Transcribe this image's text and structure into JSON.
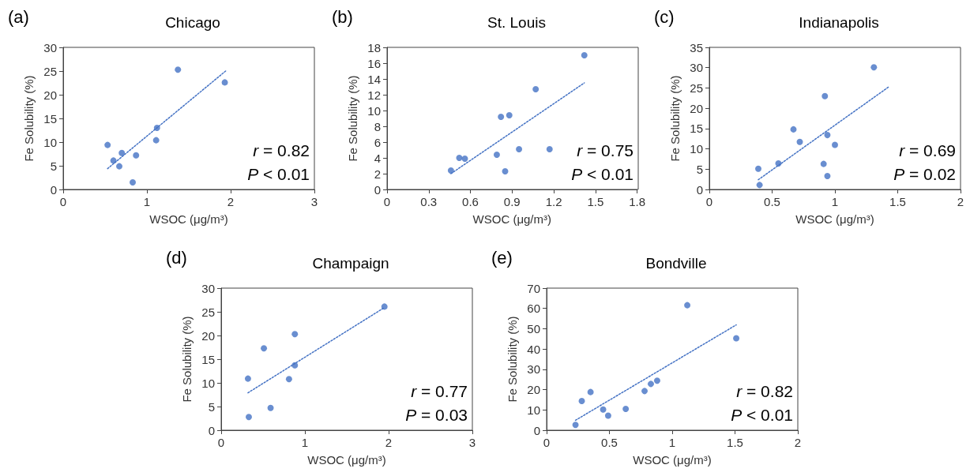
{
  "chart_data": [
    {
      "type": "scatter",
      "title": "Chicago",
      "xlabel": "WSOC (μg/m³)",
      "ylabel": "Fe Solubility (%)",
      "annotations": [
        "(a)",
        "r = 0.82",
        "P < 0.01"
      ],
      "xlim": [
        0,
        3
      ],
      "xticks": [
        0,
        1,
        2,
        3
      ],
      "ylim": [
        0,
        30
      ],
      "yticks": [
        0,
        5,
        10,
        15,
        20,
        25,
        30
      ],
      "grid": false,
      "marker": "circle",
      "series": [
        {
          "type": "scatter",
          "color": "#4472c4",
          "x": [
            0.53,
            0.6,
            0.67,
            0.7,
            0.83,
            0.87,
            1.11,
            1.12,
            1.37,
            1.93
          ],
          "values": [
            9.4,
            6.1,
            4.9,
            7.7,
            1.5,
            7.2,
            10.4,
            13.0,
            25.3,
            22.6
          ]
        },
        {
          "type": "line",
          "color": "#4472c4",
          "marker": "none",
          "line_style": "dotted",
          "x": [
            0.53,
            1.94
          ],
          "values": [
            4.4,
            25.0
          ]
        }
      ]
    },
    {
      "type": "scatter",
      "title": "St. Louis",
      "xlabel": "WSOC (μg/m³)",
      "ylabel": "Fe Solubility (%)",
      "annotations": [
        "(b)",
        "r = 0.75",
        "P < 0.01"
      ],
      "xlim": [
        0,
        1.8
      ],
      "xticks": [
        0,
        0.3,
        0.6,
        0.9,
        1.2,
        1.5,
        1.8
      ],
      "ylim": [
        0,
        18
      ],
      "yticks": [
        0,
        2,
        4,
        6,
        8,
        10,
        12,
        14,
        16,
        18
      ],
      "grid": false,
      "marker": "circle",
      "series": [
        {
          "type": "scatter",
          "color": "#4472c4",
          "x": [
            0.46,
            0.52,
            0.56,
            0.79,
            0.82,
            0.85,
            0.88,
            0.95,
            1.07,
            1.17,
            1.42
          ],
          "values": [
            2.4,
            4.0,
            3.9,
            4.4,
            9.2,
            2.3,
            9.4,
            5.1,
            12.7,
            5.1,
            17.0
          ]
        },
        {
          "type": "line",
          "color": "#4472c4",
          "marker": "none",
          "line_style": "dotted",
          "x": [
            0.46,
            1.42
          ],
          "values": [
            2.0,
            13.5
          ]
        }
      ]
    },
    {
      "type": "scatter",
      "title": "Indianapolis",
      "xlabel": "WSOC (μg/m³)",
      "ylabel": "Fe Solubility (%)",
      "annotations": [
        "(c)",
        "r = 0.69",
        "P = 0.02"
      ],
      "xlim": [
        0,
        2
      ],
      "xticks": [
        0,
        0.5,
        1,
        1.5,
        2
      ],
      "ylim": [
        0,
        35
      ],
      "yticks": [
        0,
        5,
        10,
        15,
        20,
        25,
        30,
        35
      ],
      "grid": false,
      "marker": "circle",
      "series": [
        {
          "type": "scatter",
          "color": "#4472c4",
          "x": [
            0.39,
            0.4,
            0.55,
            0.67,
            0.72,
            0.91,
            0.92,
            0.94,
            0.94,
            1.0,
            1.31
          ],
          "values": [
            5.1,
            1.1,
            6.4,
            14.8,
            11.7,
            6.3,
            23.0,
            13.4,
            3.3,
            11.0,
            30.1
          ]
        },
        {
          "type": "line",
          "color": "#4472c4",
          "marker": "none",
          "line_style": "dotted",
          "x": [
            0.39,
            1.43
          ],
          "values": [
            2.4,
            25.3
          ]
        }
      ]
    },
    {
      "type": "scatter",
      "title": "Champaign",
      "xlabel": "WSOC (μg/m³)",
      "ylabel": "Fe Solubility (%)",
      "annotations": [
        "(d)",
        "r = 0.77",
        "P = 0.03"
      ],
      "xlim": [
        0,
        3
      ],
      "xticks": [
        0,
        1,
        2,
        3
      ],
      "ylim": [
        0,
        30
      ],
      "yticks": [
        0,
        5,
        10,
        15,
        20,
        25,
        30
      ],
      "grid": false,
      "marker": "circle",
      "series": [
        {
          "type": "scatter",
          "color": "#4472c4",
          "x": [
            0.32,
            0.33,
            0.51,
            0.59,
            0.81,
            0.88,
            0.88,
            1.95
          ],
          "values": [
            10.9,
            2.8,
            17.3,
            4.7,
            10.8,
            20.3,
            13.7,
            26.1
          ]
        },
        {
          "type": "line",
          "color": "#4472c4",
          "marker": "none",
          "line_style": "dotted",
          "x": [
            0.32,
            1.95
          ],
          "values": [
            7.9,
            25.9
          ]
        }
      ]
    },
    {
      "type": "scatter",
      "title": "Bondville",
      "xlabel": "WSOC (μg/m³)",
      "ylabel": "Fe Solubility (%)",
      "annotations": [
        "(e)",
        "r = 0.82",
        "P < 0.01"
      ],
      "xlim": [
        0,
        2
      ],
      "xticks": [
        0,
        0.5,
        1,
        1.5,
        2
      ],
      "ylim": [
        0,
        70
      ],
      "yticks": [
        0,
        10,
        20,
        30,
        40,
        50,
        60,
        70
      ],
      "grid": false,
      "marker": "circle",
      "series": [
        {
          "type": "scatter",
          "color": "#4472c4",
          "x": [
            0.23,
            0.28,
            0.35,
            0.45,
            0.49,
            0.63,
            0.78,
            0.83,
            0.88,
            1.12,
            1.51
          ],
          "values": [
            2.6,
            14.4,
            18.8,
            10.2,
            7.2,
            10.5,
            19.3,
            22.8,
            24.4,
            61.6,
            45.3
          ]
        },
        {
          "type": "line",
          "color": "#4472c4",
          "marker": "none",
          "line_style": "dotted",
          "x": [
            0.23,
            1.51
          ],
          "values": [
            4.9,
            51.9
          ]
        }
      ]
    }
  ]
}
